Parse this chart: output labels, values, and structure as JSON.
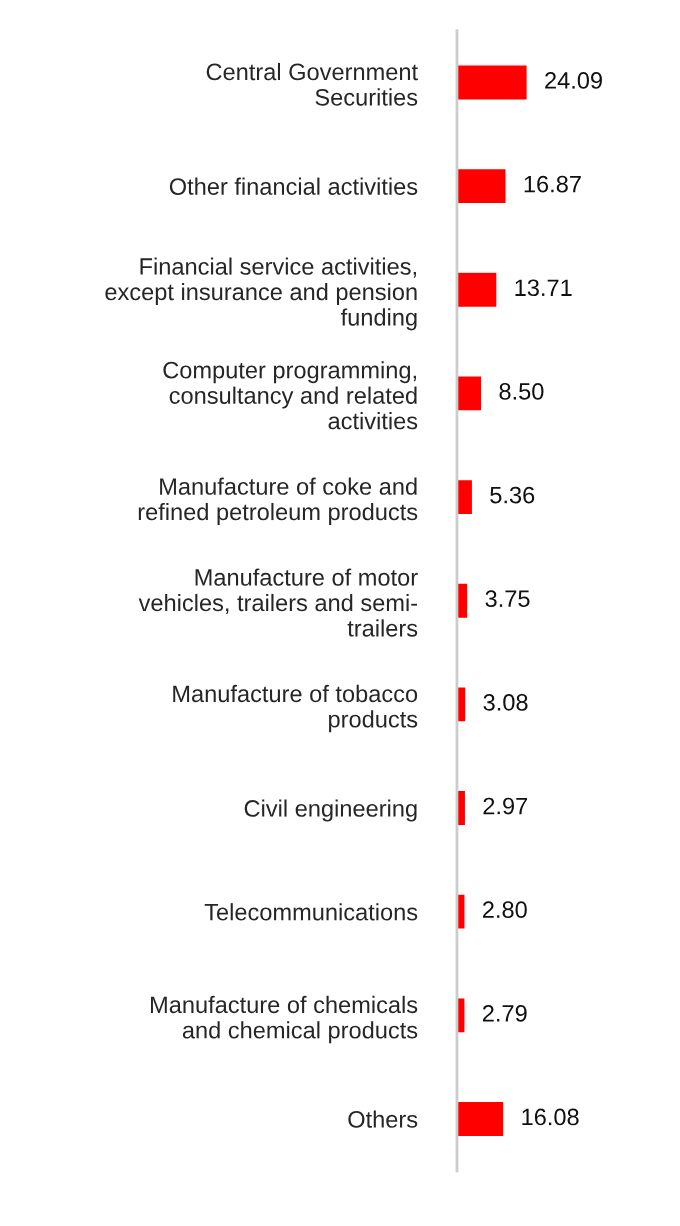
{
  "chart_data": {
    "type": "bar",
    "orientation": "horizontal",
    "categories": [
      "Central Government\nSecurities",
      "Other financial activities",
      "Financial service activities,\nexcept insurance and pension\nfunding",
      "Computer programming,\nconsultancy and related\nactivities",
      "Manufacture of coke and\nrefined petroleum products",
      "Manufacture of motor\nvehicles, trailers and semi-\ntrailers",
      "Manufacture of tobacco\nproducts",
      "Civil engineering",
      "Telecommunications",
      "Manufacture of chemicals\nand chemical products",
      "Others"
    ],
    "series": [
      {
        "color": "#ff0000",
        "values": [
          24.09,
          16.87,
          13.71,
          8.5,
          5.36,
          3.75,
          3.08,
          2.97,
          2.8,
          2.79,
          16.08
        ],
        "value_labels": [
          "24.09",
          "16.87",
          "13.71",
          "8.50",
          "5.36",
          "3.75",
          "3.08",
          "2.97",
          "2.80",
          "2.79",
          "16.08"
        ]
      }
    ],
    "grid": false,
    "legend": false
  }
}
